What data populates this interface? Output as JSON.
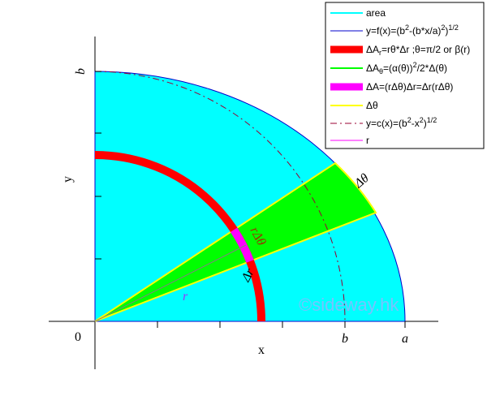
{
  "labels": {
    "b_axis_y": "b",
    "y_axis": "y",
    "x_axis": "x",
    "origin": "0",
    "b_axis_x": "b",
    "a_axis_x": "a",
    "d_theta": "Δθ",
    "r_d_theta": "rΔθ",
    "d_r": "Δr",
    "r": "r",
    "watermark": "©sideway.hk"
  },
  "legend": {
    "items": [
      {
        "parts": [
          {
            "text": "area"
          }
        ]
      },
      {
        "parts": [
          {
            "text": "y=f(x)=(b"
          },
          {
            "sup": "2"
          },
          {
            "text": "-(b*x/a)"
          },
          {
            "sup": "2"
          },
          {
            "text": ")"
          },
          {
            "sup": "1/2"
          }
        ]
      },
      {
        "parts": [
          {
            "text": "ΔA"
          },
          {
            "sub": "r"
          },
          {
            "text": "=rθ*Δr ;θ=π/2 or β(r)"
          }
        ]
      },
      {
        "parts": [
          {
            "text": "ΔA"
          },
          {
            "sub": "θ"
          },
          {
            "text": "=(α(θ))"
          },
          {
            "sup": "2"
          },
          {
            "text": "/2*Δ(θ)"
          }
        ]
      },
      {
        "parts": [
          {
            "text": "ΔA=(rΔθ)Δr=Δr(rΔθ)"
          }
        ]
      },
      {
        "parts": [
          {
            "text": "Δθ"
          }
        ]
      },
      {
        "parts": [
          {
            "text": "y=c(x)=(b"
          },
          {
            "sup": "2"
          },
          {
            "text": "-x"
          },
          {
            "sup": "2"
          },
          {
            "text": ")"
          },
          {
            "sup": "1/2"
          }
        ]
      },
      {
        "parts": [
          {
            "text": "r"
          }
        ]
      }
    ]
  }
}
